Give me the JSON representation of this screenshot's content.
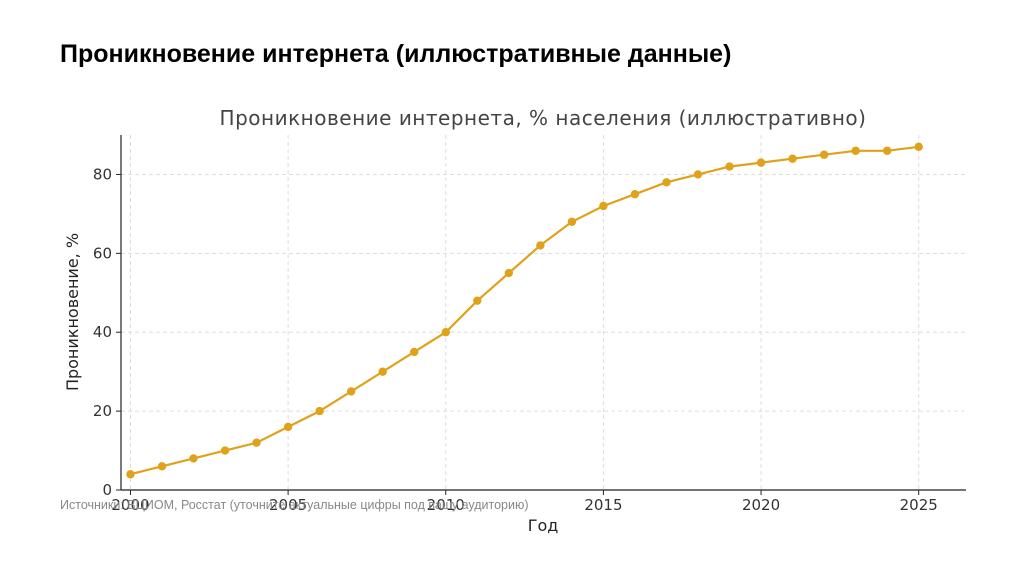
{
  "slide": {
    "title": "Проникновение интернета (иллюстративные данные)",
    "source_note": "Источники: ВЦИОМ, Росстат (уточните актуальные цифры под вашу аудиторию)"
  },
  "colors": {
    "line": "#E0A11B",
    "grid": "#dddddd",
    "axis": "#222222"
  },
  "chart_data": {
    "type": "line",
    "title": "Проникновение интернета, % населения (иллюстративно)",
    "xlabel": "Год",
    "ylabel": "Проникновение, %",
    "xlim": [
      1999.7,
      2026.5
    ],
    "ylim": [
      0,
      90
    ],
    "xticks": [
      2000,
      2005,
      2010,
      2015,
      2020,
      2025
    ],
    "yticks": [
      0,
      20,
      40,
      60,
      80
    ],
    "grid": true,
    "series": [
      {
        "x": [
          2000,
          2001,
          2002,
          2003,
          2004,
          2005,
          2006,
          2007,
          2008,
          2009,
          2010,
          2011,
          2012,
          2013,
          2014,
          2015,
          2016,
          2017,
          2018,
          2019,
          2020,
          2021,
          2022,
          2023,
          2024,
          2025
        ],
        "y": [
          4,
          6,
          8,
          10,
          12,
          16,
          20,
          25,
          30,
          35,
          40,
          48,
          55,
          62,
          68,
          72,
          75,
          78,
          80,
          82,
          83,
          84,
          85,
          86,
          86,
          87
        ]
      }
    ]
  }
}
